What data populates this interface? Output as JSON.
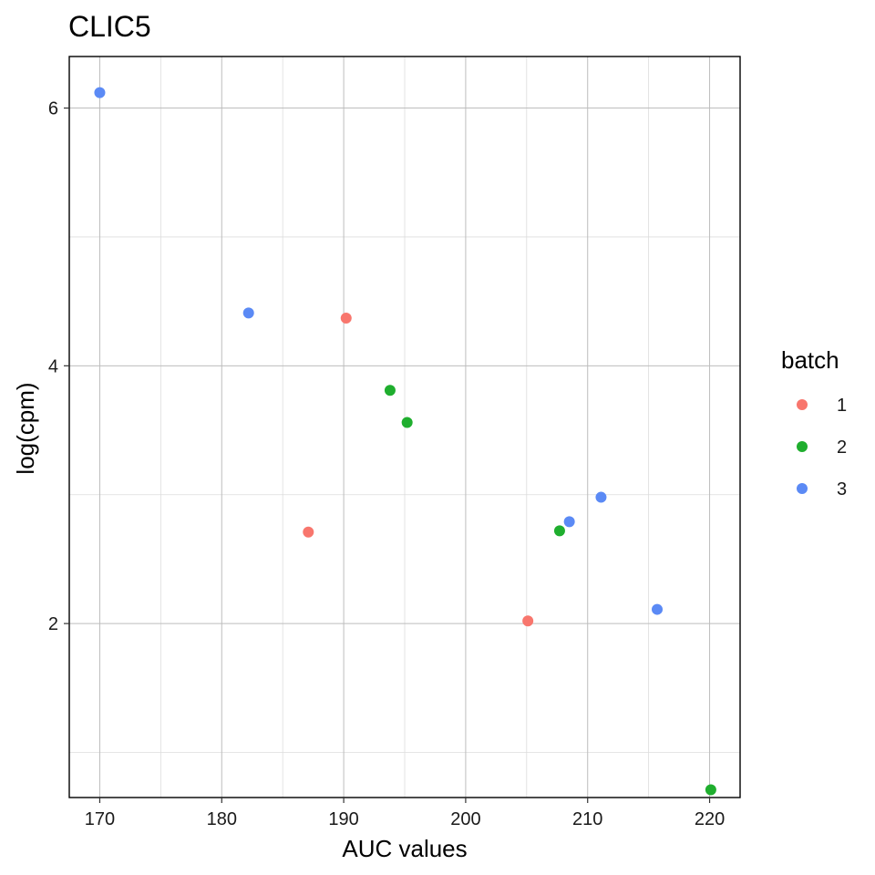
{
  "chart_data": {
    "type": "scatter",
    "title": "CLIC5",
    "xlabel": "AUC values",
    "ylabel": "log(cpm)",
    "xlim": [
      167.5,
      222.5
    ],
    "ylim": [
      0.65,
      6.4
    ],
    "x_ticks": [
      170,
      180,
      190,
      200,
      210,
      220
    ],
    "x_tick_labels": [
      "170",
      "180",
      "190",
      "200",
      "210",
      "220"
    ],
    "x_minor_ticks": [
      175,
      185,
      195,
      205,
      215
    ],
    "y_ticks": [
      2,
      4,
      6
    ],
    "y_tick_labels": [
      "2",
      "4",
      "6"
    ],
    "y_minor_ticks": [
      1,
      3,
      5
    ],
    "grid": true,
    "legend": {
      "title": "batch",
      "position": "right",
      "entries": [
        {
          "label": "1",
          "color": "#F8766D"
        },
        {
          "label": "2",
          "color": "#1FAE2E"
        },
        {
          "label": "3",
          "color": "#5B8AF5"
        }
      ]
    },
    "series": [
      {
        "name": "1",
        "color": "#F8766D",
        "points": [
          [
            190.2,
            4.37
          ],
          [
            187.1,
            2.71
          ],
          [
            205.1,
            2.02
          ]
        ]
      },
      {
        "name": "2",
        "color": "#1FAE2E",
        "points": [
          [
            193.8,
            3.81
          ],
          [
            195.2,
            3.56
          ],
          [
            207.7,
            2.72
          ],
          [
            220.1,
            0.71
          ]
        ]
      },
      {
        "name": "3",
        "color": "#5B8AF5",
        "points": [
          [
            170.0,
            6.12
          ],
          [
            182.2,
            4.41
          ],
          [
            208.5,
            2.79
          ],
          [
            211.1,
            2.98
          ],
          [
            215.7,
            2.11
          ]
        ]
      }
    ]
  }
}
